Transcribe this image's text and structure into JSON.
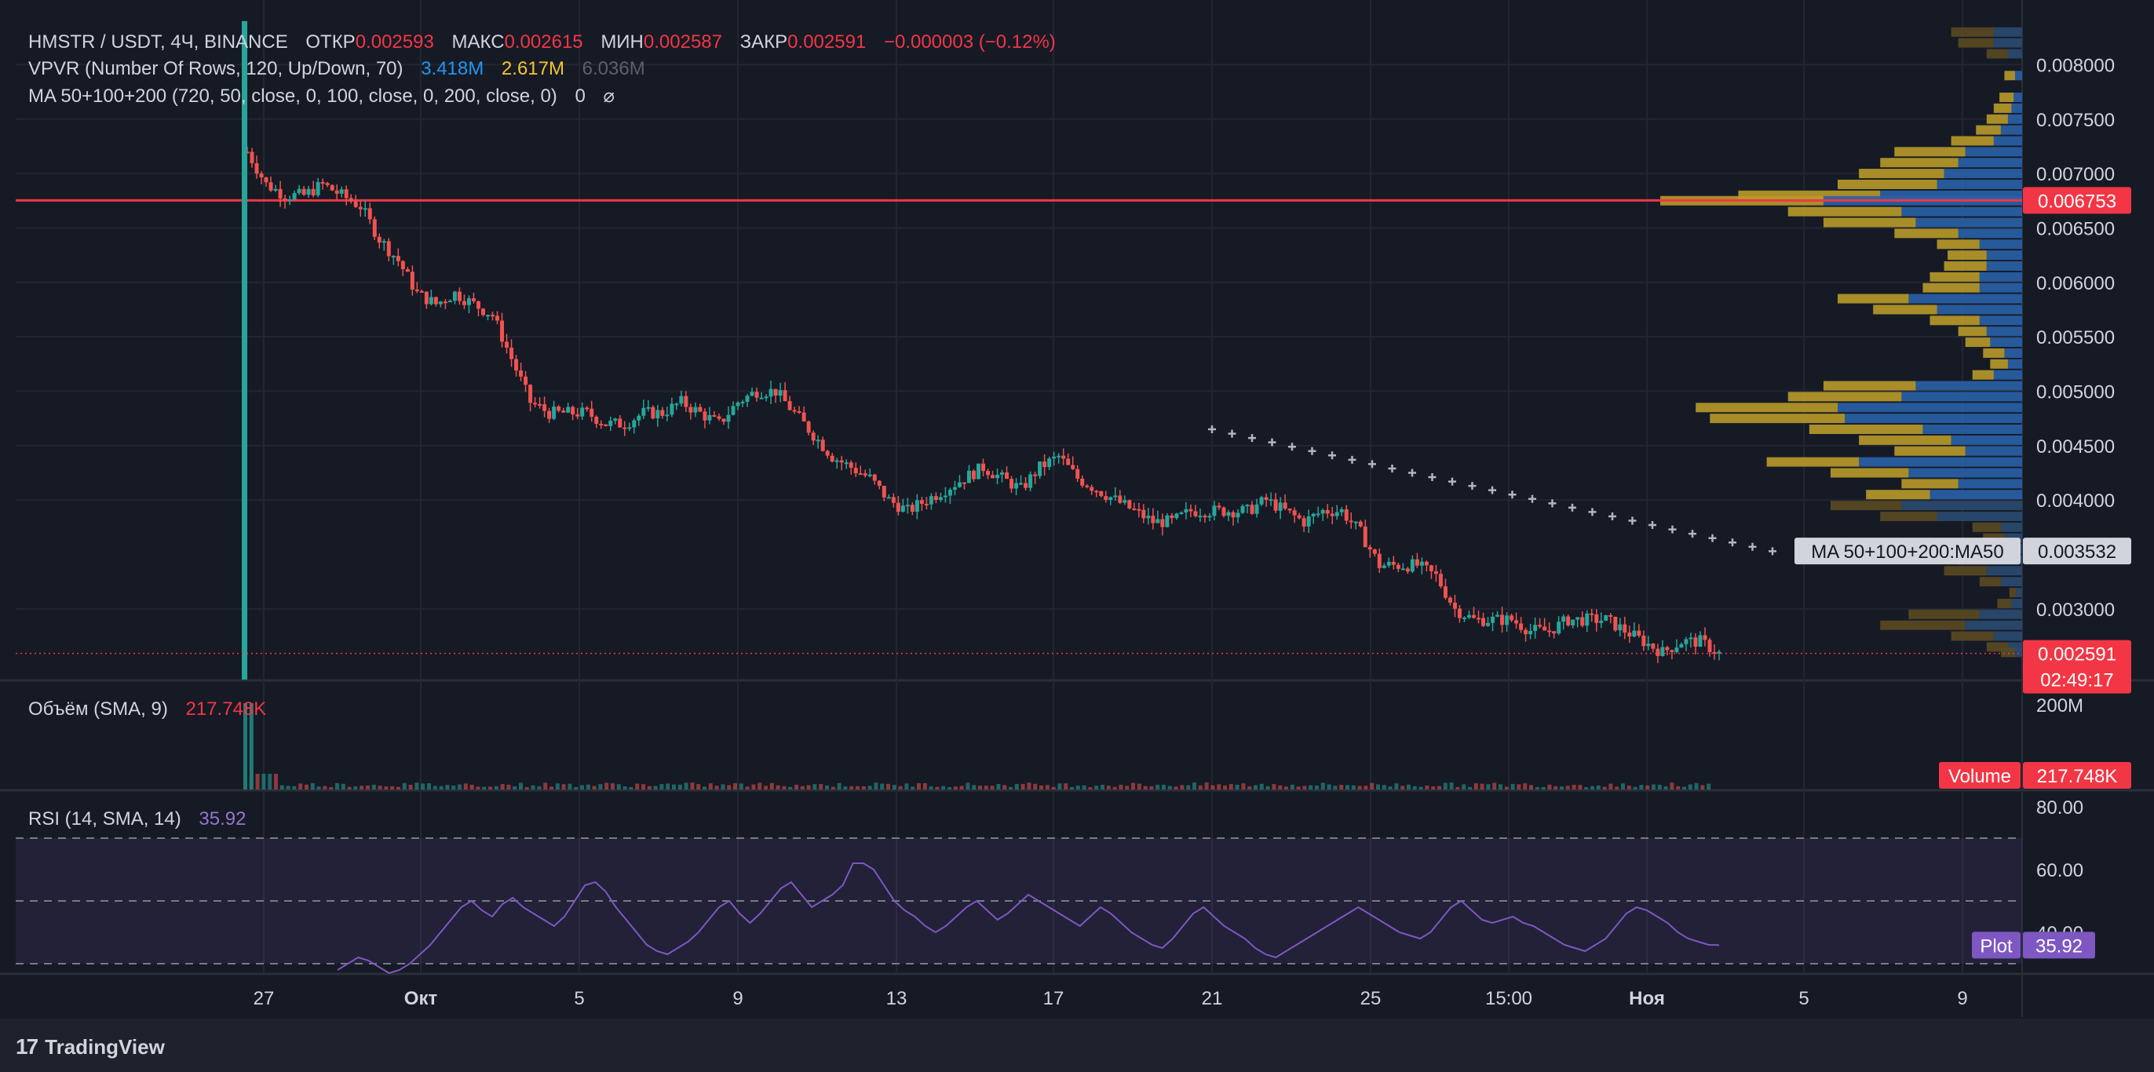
{
  "legend": {
    "symbol": "HMSTR / USDT, 4Ч, BINANCE",
    "open_label": "ОТКР",
    "open": "0.002593",
    "high_label": "МАКС",
    "high": "0.002615",
    "low_label": "МИН",
    "low": "0.002587",
    "close_label": "ЗАКР",
    "close": "0.002591",
    "change": "−0.000003 (−0.12%)",
    "vpvr_name": "VPVR (Number Of Rows, 120, Up/Down, 70)",
    "vpvr_up": "3.418M",
    "vpvr_down": "2.617M",
    "vpvr_total": "6.036M",
    "ma_name": "MA 50+100+200 (720, 50, close, 0, 100, close, 0, 200, close, 0)",
    "ma_tail": "0",
    "ma_symbol": "⌀",
    "vol_name": "Объём (SMA, 9)",
    "vol_value": "217.748K",
    "rsi_name": "RSI (14, SMA, 14)",
    "rsi_value": "35.92"
  },
  "brand": {
    "name": "TradingView",
    "logo": "17"
  },
  "chart_data": {
    "type": "candlestick",
    "price_axis": {
      "ticks": [
        "0.008000",
        "0.007500",
        "0.007000",
        "0.006500",
        "0.006000",
        "0.005500",
        "0.005000",
        "0.004500",
        "0.004000",
        "0.003000"
      ],
      "ylim": [
        0.00235,
        0.00845
      ]
    },
    "x_axis": {
      "ticks": [
        "27",
        "Окт",
        "5",
        "9",
        "13",
        "17",
        "21",
        "25",
        "15:00",
        "Ноя",
        "5",
        "9"
      ]
    },
    "price_labels": [
      {
        "text": "0.006753",
        "color": "#f23645",
        "value": 0.006753
      },
      {
        "text": "MA 50+100+200:MA50",
        "value": 0.003532
      },
      {
        "text": "0.003532",
        "value": 0.003532
      },
      {
        "text": "0.002591",
        "color": "#f23645",
        "value": 0.002591
      },
      {
        "text": "02:49:17",
        "color": "#f23645",
        "value": 0.002591
      }
    ],
    "horizontal_line": {
      "value": 0.006753,
      "color": "#f23645"
    },
    "ma50_dots": [
      0.00465,
      0.00461,
      0.00457,
      0.00453,
      0.00449,
      0.00445,
      0.00441,
      0.00437,
      0.00433,
      0.00429,
      0.00425,
      0.00421,
      0.00417,
      0.00413,
      0.00409,
      0.00405,
      0.00401,
      0.00397,
      0.00393,
      0.00389,
      0.00385,
      0.00381,
      0.00377,
      0.00373,
      0.00369,
      0.00365,
      0.00361,
      0.00357,
      0.00353
    ],
    "price_path": [
      0.0072,
      0.0069,
      0.0068,
      0.0068,
      0.0069,
      0.0068,
      0.0067,
      0.0064,
      0.0062,
      0.0059,
      0.0058,
      0.0059,
      0.0058,
      0.0057,
      0.0053,
      0.0049,
      0.0048,
      0.0048,
      0.0048,
      0.0047,
      0.0047,
      0.0048,
      0.0048,
      0.0049,
      0.0048,
      0.0047,
      0.0049,
      0.005,
      0.005,
      0.0048,
      0.0046,
      0.0044,
      0.0043,
      0.0042,
      0.004,
      0.0039,
      0.004,
      0.0041,
      0.0042,
      0.0043,
      0.0042,
      0.0041,
      0.0043,
      0.0044,
      0.0042,
      0.0041,
      0.004,
      0.0039,
      0.0038,
      0.0038,
      0.0039,
      0.0039,
      0.0039,
      0.0039,
      0.004,
      0.0039,
      0.0038,
      0.0039,
      0.0039,
      0.0037,
      0.0034,
      0.0034,
      0.0034,
      0.0033,
      0.003,
      0.0029,
      0.0029,
      0.0029,
      0.0028,
      0.0028,
      0.0029,
      0.0029,
      0.0029,
      0.0028,
      0.0027,
      0.0026,
      0.0027,
      0.0027,
      0.002591
    ],
    "vpvr_rows": [
      {
        "p": 0.0083,
        "up": 60,
        "down": 40
      },
      {
        "p": 0.0082,
        "up": 50,
        "down": 40
      },
      {
        "p": 0.0081,
        "up": 30,
        "down": 20
      },
      {
        "p": 0.0079,
        "up": 15,
        "down": 10
      },
      {
        "p": 0.0077,
        "up": 20,
        "down": 12
      },
      {
        "p": 0.0076,
        "up": 25,
        "down": 15
      },
      {
        "p": 0.0075,
        "up": 30,
        "down": 20
      },
      {
        "p": 0.0074,
        "up": 35,
        "down": 30
      },
      {
        "p": 0.0073,
        "up": 60,
        "down": 40
      },
      {
        "p": 0.0072,
        "up": 100,
        "down": 80
      },
      {
        "p": 0.0071,
        "up": 110,
        "down": 90
      },
      {
        "p": 0.007,
        "up": 120,
        "down": 110
      },
      {
        "p": 0.0069,
        "up": 140,
        "down": 120
      },
      {
        "p": 0.0068,
        "up": 200,
        "down": 200
      },
      {
        "p": 0.00675,
        "up": 230,
        "down": 280
      },
      {
        "p": 0.00665,
        "up": 160,
        "down": 170
      },
      {
        "p": 0.00655,
        "up": 130,
        "down": 150
      },
      {
        "p": 0.00645,
        "up": 90,
        "down": 90
      },
      {
        "p": 0.00635,
        "up": 60,
        "down": 60
      },
      {
        "p": 0.00625,
        "up": 55,
        "down": 50
      },
      {
        "p": 0.00615,
        "up": 60,
        "down": 50
      },
      {
        "p": 0.00605,
        "up": 70,
        "down": 60
      },
      {
        "p": 0.00595,
        "up": 80,
        "down": 60
      },
      {
        "p": 0.00585,
        "up": 100,
        "down": 160
      },
      {
        "p": 0.00575,
        "up": 90,
        "down": 120
      },
      {
        "p": 0.00565,
        "up": 70,
        "down": 60
      },
      {
        "p": 0.00555,
        "up": 40,
        "down": 50
      },
      {
        "p": 0.00545,
        "up": 35,
        "down": 45
      },
      {
        "p": 0.00535,
        "up": 30,
        "down": 25
      },
      {
        "p": 0.00525,
        "up": 25,
        "down": 20
      },
      {
        "p": 0.00515,
        "up": 30,
        "down": 40
      },
      {
        "p": 0.00505,
        "up": 130,
        "down": 150
      },
      {
        "p": 0.00495,
        "up": 160,
        "down": 170
      },
      {
        "p": 0.00485,
        "up": 200,
        "down": 260
      },
      {
        "p": 0.00475,
        "up": 190,
        "down": 250
      },
      {
        "p": 0.00465,
        "up": 160,
        "down": 140
      },
      {
        "p": 0.00455,
        "up": 130,
        "down": 100
      },
      {
        "p": 0.00445,
        "up": 100,
        "down": 80
      },
      {
        "p": 0.00435,
        "up": 130,
        "down": 230
      },
      {
        "p": 0.00425,
        "up": 110,
        "down": 160
      },
      {
        "p": 0.00415,
        "up": 80,
        "down": 90
      },
      {
        "p": 0.00405,
        "up": 90,
        "down": 130
      },
      {
        "p": 0.00395,
        "up": 100,
        "down": 170
      },
      {
        "p": 0.00385,
        "up": 80,
        "down": 120
      },
      {
        "p": 0.00375,
        "up": 40,
        "down": 30
      },
      {
        "p": 0.00365,
        "up": 30,
        "down": 25
      },
      {
        "p": 0.00355,
        "up": 60,
        "down": 40
      },
      {
        "p": 0.00345,
        "up": 50,
        "down": 40
      },
      {
        "p": 0.00335,
        "up": 60,
        "down": 50
      },
      {
        "p": 0.00325,
        "up": 30,
        "down": 30
      },
      {
        "p": 0.00315,
        "up": 10,
        "down": 8
      },
      {
        "p": 0.00305,
        "up": 20,
        "down": 15
      },
      {
        "p": 0.00295,
        "up": 100,
        "down": 60
      },
      {
        "p": 0.00285,
        "up": 120,
        "down": 80
      },
      {
        "p": 0.00275,
        "up": 60,
        "down": 40
      },
      {
        "p": 0.00265,
        "up": 30,
        "down": 20
      },
      {
        "p": 0.0026,
        "up": 20,
        "down": 10
      }
    ],
    "volume_axis": {
      "ticks": [
        "200M"
      ],
      "label": "Volume",
      "value": "217.748K"
    },
    "rsi_axis": {
      "ticks": [
        "80.00",
        "60.00",
        "40.00"
      ],
      "label": "Plot",
      "value": "35.92",
      "bands": [
        70,
        50,
        30
      ]
    },
    "rsi_path": [
      28,
      30,
      32,
      31,
      29,
      27,
      28,
      30,
      33,
      36,
      40,
      44,
      48,
      50,
      47,
      45,
      49,
      51,
      48,
      46,
      44,
      42,
      45,
      50,
      55,
      56,
      53,
      48,
      44,
      40,
      36,
      34,
      33,
      35,
      37,
      40,
      44,
      48,
      50,
      46,
      43,
      46,
      50,
      54,
      56,
      52,
      48,
      50,
      52,
      55,
      62,
      62,
      60,
      55,
      50,
      47,
      45,
      42,
      40,
      42,
      45,
      48,
      50,
      47,
      44,
      46,
      49,
      52,
      50,
      48,
      46,
      44,
      42,
      45,
      48,
      46,
      43,
      40,
      38,
      36,
      35,
      38,
      42,
      46,
      48,
      45,
      42,
      40,
      38,
      35,
      33,
      32,
      34,
      36,
      38,
      40,
      42,
      44,
      46,
      48,
      46,
      44,
      42,
      40,
      39,
      38,
      40,
      44,
      48,
      50,
      47,
      44,
      43,
      44,
      45,
      43,
      42,
      40,
      38,
      36,
      35,
      34,
      36,
      38,
      42,
      46,
      48,
      47,
      45,
      43,
      40,
      38,
      37,
      36,
      35.92
    ]
  }
}
